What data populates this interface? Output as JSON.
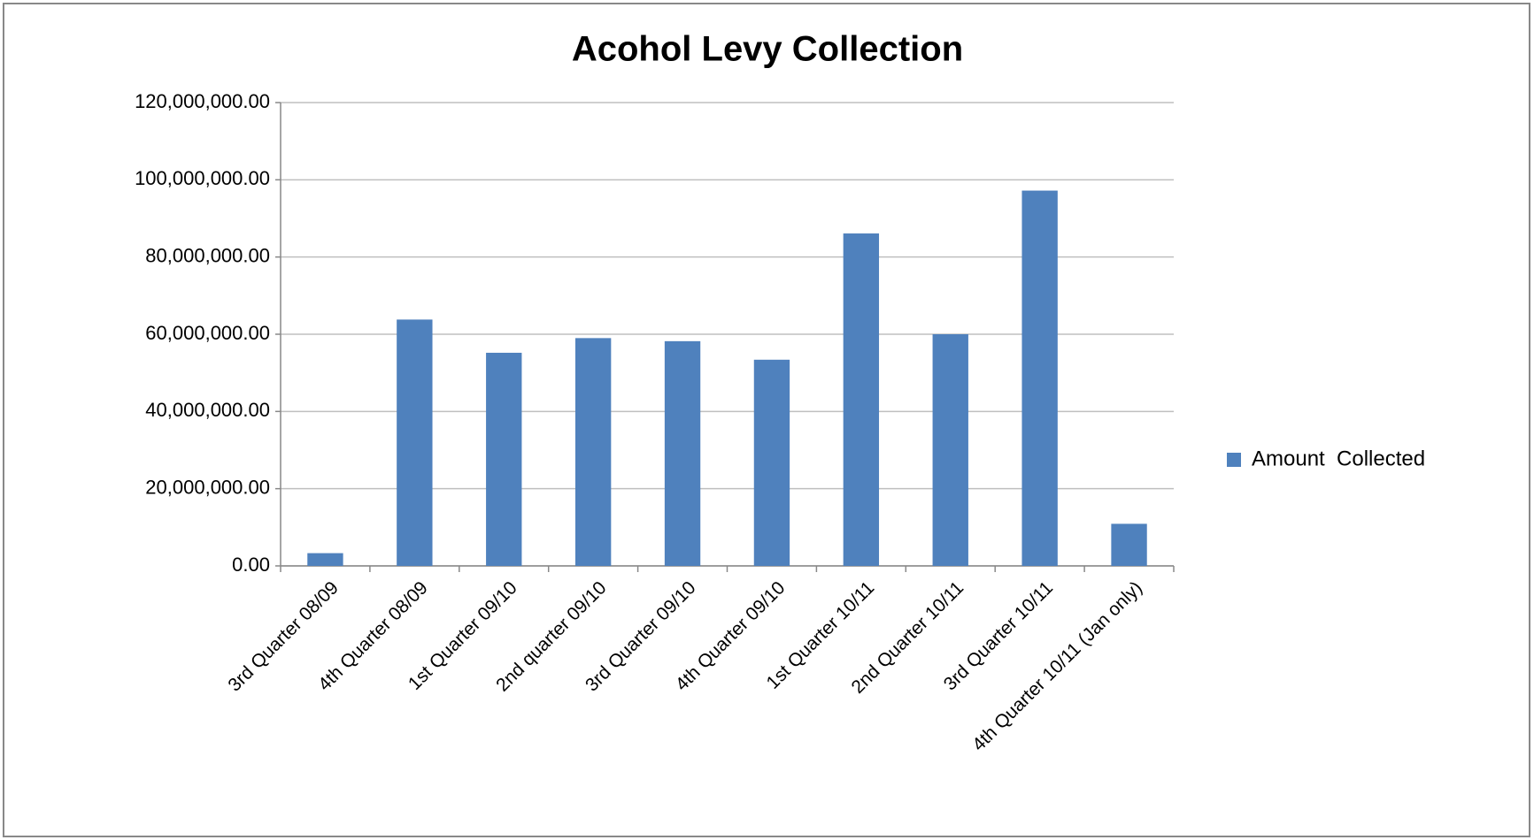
{
  "chart_data": {
    "type": "bar",
    "title": "Acohol Levy Collection",
    "categories": [
      "3rd Quarter 08/09",
      "4th Quarter 08/09",
      "1st Quarter 09/10",
      "2nd quarter 09/10",
      "3rd Quarter 09/10",
      "4th Quarter 09/10",
      "1st Quarter 10/11",
      "2nd Quarter 10/11",
      "3rd Quarter 10/11",
      "4th Quarter 10/11 (Jan only)"
    ],
    "series": [
      {
        "name": "Amount  Collected",
        "color": "#4f81bd",
        "values": [
          3300000,
          63800000,
          55200000,
          59000000,
          58200000,
          53400000,
          86100000,
          60000000,
          97200000,
          10900000
        ]
      }
    ],
    "ylim": [
      0,
      120000000
    ],
    "yticks": [
      {
        "value": 0,
        "label": "0.00"
      },
      {
        "value": 20000000,
        "label": "20,000,000.00"
      },
      {
        "value": 40000000,
        "label": "40,000,000.00"
      },
      {
        "value": 60000000,
        "label": "60,000,000.00"
      },
      {
        "value": 80000000,
        "label": "80,000,000.00"
      },
      {
        "value": 100000000,
        "label": "100,000,000.00"
      },
      {
        "value": 120000000,
        "label": "120,000,000.00"
      }
    ],
    "grid": true,
    "legend": "right"
  }
}
